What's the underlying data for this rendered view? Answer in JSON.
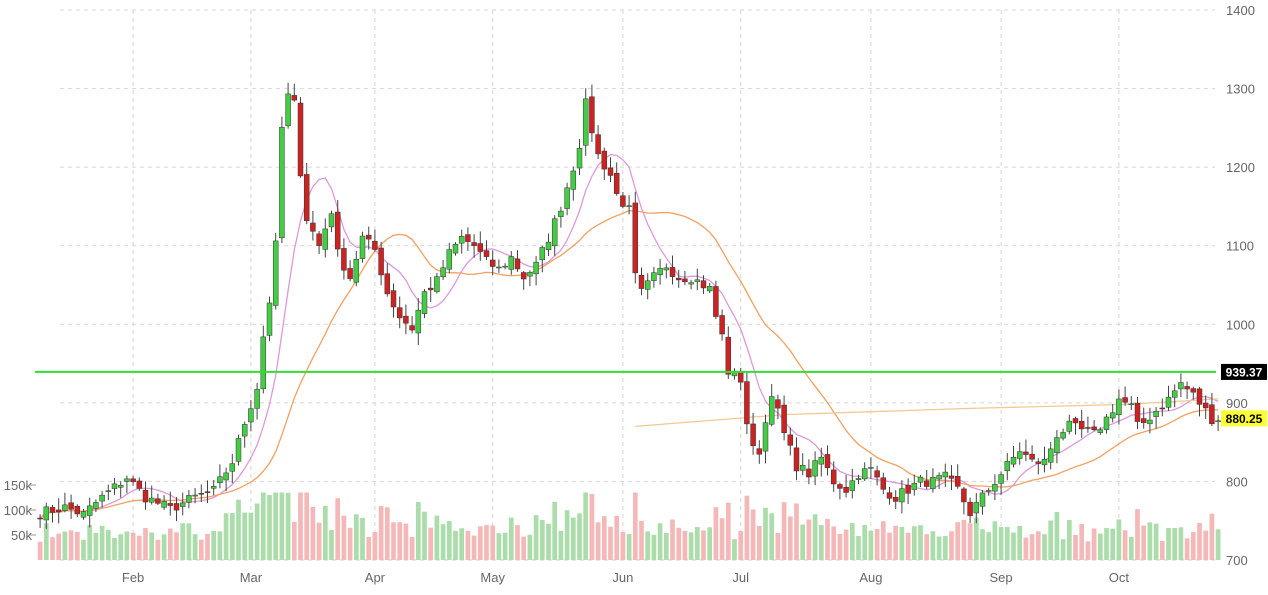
{
  "chart_data": {
    "type": "candlestick",
    "price_axis": {
      "ylim": [
        700,
        1400
      ],
      "ticks": [
        "1400",
        "1300",
        "1200",
        "1100",
        "1000",
        "900",
        "800",
        "700"
      ],
      "position": "right",
      "grid": true
    },
    "volume_axis": {
      "ticks": [
        "150k",
        "100k",
        "50k"
      ],
      "tick_values": [
        150,
        100,
        50
      ],
      "unit": "k",
      "position": "left"
    },
    "x_axis": {
      "labels": [
        "Feb",
        "Mar",
        "Apr",
        "May",
        "Jun",
        "Jul",
        "Aug",
        "Sep",
        "Oct"
      ],
      "label_bar_index": [
        15,
        34,
        54,
        73,
        94,
        113,
        134,
        155,
        174
      ],
      "bar_count": 191,
      "grid": true
    },
    "levels": [
      {
        "value": 939.37,
        "label": "939.37",
        "color": "#33dd33",
        "label_bg": "#000000",
        "label_fg": "#ffffff"
      },
      {
        "value": 880.25,
        "label": "880.25",
        "color": "#ffee00",
        "label_bg": "#ffff33",
        "label_fg": "#000000"
      }
    ],
    "ma_long": [
      {
        "bar": 96,
        "value": 870
      },
      {
        "bar": 120,
        "value": 885
      },
      {
        "bar": 150,
        "value": 893
      },
      {
        "bar": 175,
        "value": 898
      },
      {
        "bar": 190,
        "value": 905
      }
    ],
    "colors": {
      "up": "#44cc44",
      "down": "#cc2222",
      "vol_up": "#aaddaa",
      "vol_down": "#f5b8b8",
      "ma_short": "#dd99dd",
      "ma_mid": "#f4a060",
      "ma_long": "#f4c890",
      "grid": "#d6d6d6"
    },
    "keypoints": [
      [
        0,
        760
      ],
      [
        4,
        767
      ],
      [
        7,
        758
      ],
      [
        10,
        780
      ],
      [
        14,
        805
      ],
      [
        17,
        780
      ],
      [
        21,
        765
      ],
      [
        25,
        780
      ],
      [
        28,
        788
      ],
      [
        31,
        825
      ],
      [
        33,
        875
      ],
      [
        35,
        920
      ],
      [
        36,
        985
      ],
      [
        37,
        1030
      ],
      [
        38,
        1100
      ],
      [
        39,
        1250
      ],
      [
        40,
        1290
      ],
      [
        41,
        1280
      ],
      [
        42,
        1195
      ],
      [
        43,
        1135
      ],
      [
        45,
        1100
      ],
      [
        47,
        1145
      ],
      [
        48,
        1090
      ],
      [
        50,
        1060
      ],
      [
        52,
        1110
      ],
      [
        54,
        1095
      ],
      [
        56,
        1040
      ],
      [
        58,
        1010
      ],
      [
        60,
        995
      ],
      [
        62,
        1040
      ],
      [
        64,
        1055
      ],
      [
        66,
        1090
      ],
      [
        68,
        1110
      ],
      [
        70,
        1100
      ],
      [
        72,
        1080
      ],
      [
        74,
        1070
      ],
      [
        76,
        1085
      ],
      [
        78,
        1060
      ],
      [
        80,
        1075
      ],
      [
        82,
        1110
      ],
      [
        84,
        1150
      ],
      [
        86,
        1200
      ],
      [
        87,
        1230
      ],
      [
        88,
        1280
      ],
      [
        90,
        1215
      ],
      [
        92,
        1190
      ],
      [
        93,
        1165
      ],
      [
        95,
        1145
      ],
      [
        96,
        1060
      ],
      [
        97,
        1040
      ],
      [
        99,
        1060
      ],
      [
        101,
        1075
      ],
      [
        103,
        1060
      ],
      [
        105,
        1060
      ],
      [
        108,
        1045
      ],
      [
        109,
        1010
      ],
      [
        110,
        985
      ],
      [
        111,
        940
      ],
      [
        113,
        930
      ],
      [
        114,
        875
      ],
      [
        115,
        840
      ],
      [
        116,
        840
      ],
      [
        117,
        875
      ],
      [
        118,
        915
      ],
      [
        120,
        860
      ],
      [
        122,
        820
      ],
      [
        124,
        810
      ],
      [
        126,
        830
      ],
      [
        128,
        800
      ],
      [
        130,
        790
      ],
      [
        132,
        810
      ],
      [
        134,
        815
      ],
      [
        136,
        790
      ],
      [
        138,
        780
      ],
      [
        140,
        790
      ],
      [
        142,
        800
      ],
      [
        144,
        800
      ],
      [
        146,
        805
      ],
      [
        148,
        790
      ],
      [
        150,
        760
      ],
      [
        152,
        780
      ],
      [
        154,
        800
      ],
      [
        156,
        820
      ],
      [
        158,
        840
      ],
      [
        160,
        825
      ],
      [
        162,
        825
      ],
      [
        164,
        860
      ],
      [
        166,
        870
      ],
      [
        168,
        865
      ],
      [
        170,
        860
      ],
      [
        172,
        880
      ],
      [
        174,
        905
      ],
      [
        176,
        895
      ],
      [
        177,
        870
      ],
      [
        178,
        875
      ],
      [
        180,
        890
      ],
      [
        182,
        905
      ],
      [
        184,
        925
      ],
      [
        186,
        910
      ],
      [
        188,
        890
      ],
      [
        189,
        880
      ],
      [
        190,
        880
      ]
    ]
  }
}
